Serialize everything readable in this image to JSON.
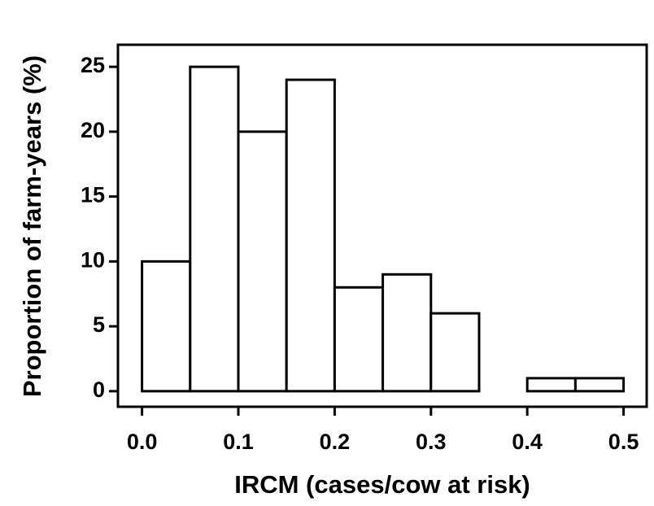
{
  "chart_data": {
    "type": "histogram",
    "x_label": "IRCM (cases/cow at risk)",
    "y_label": "Proportion of farm-years (%)",
    "bins": [
      0,
      0.05,
      0.1,
      0.15,
      0.2,
      0.25,
      0.3,
      0.35,
      0.4,
      0.45,
      0.5
    ],
    "values": [
      10,
      25,
      20,
      24,
      8,
      9,
      6,
      0,
      1,
      1
    ],
    "color": "#ffffff",
    "edgecolor": "#000000",
    "xlim": [
      -0.025,
      0.524
    ],
    "ylim": [
      -1.2,
      26.7
    ],
    "xticks": [
      {
        "value": 0,
        "label": "0.0"
      },
      0.1,
      0.2,
      0.3,
      0.4,
      0.5
    ],
    "yticks": [
      0,
      5,
      10,
      15,
      20,
      25
    ]
  }
}
